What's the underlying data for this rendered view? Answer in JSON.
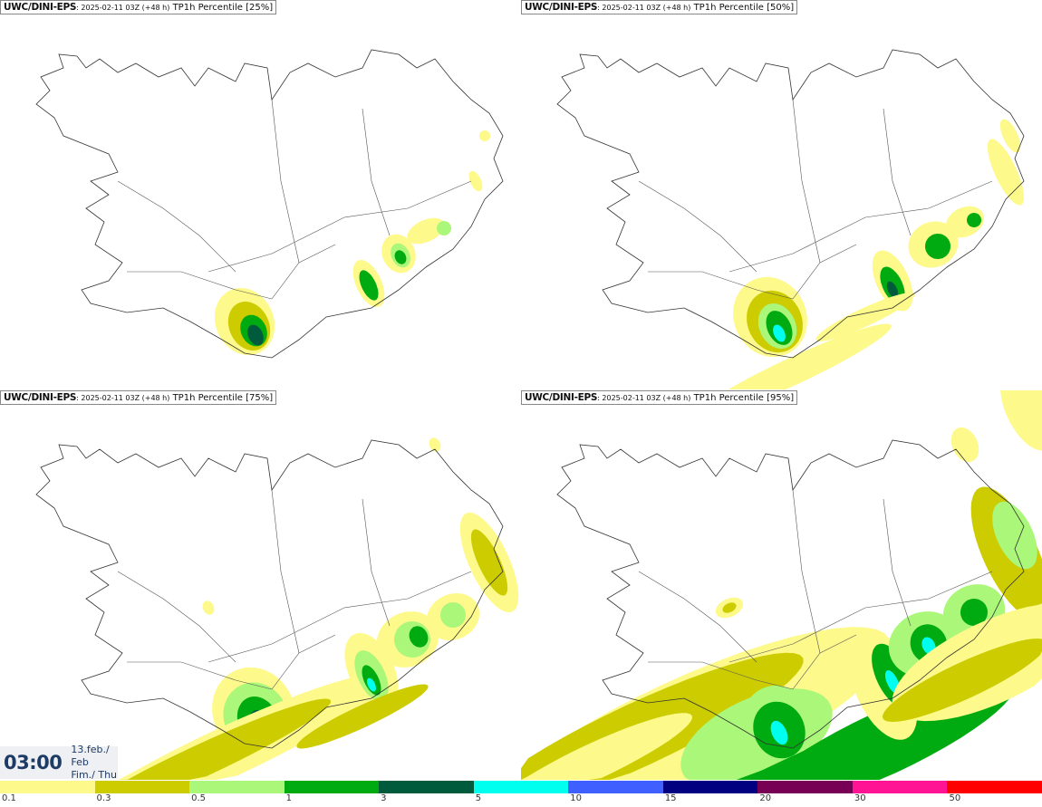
{
  "panels": [
    {
      "model": "UWC/DINI-EPS",
      "run": ": 2025-02-11 03Z (+48 h)",
      "field": "TP1h Percentile [25%]"
    },
    {
      "model": "UWC/DINI-EPS",
      "run": ": 2025-02-11 03Z (+48 h)",
      "field": "TP1h Percentile [50%]"
    },
    {
      "model": "UWC/DINI-EPS",
      "run": ": 2025-02-11 03Z (+48 h)",
      "field": "TP1h Percentile [75%]"
    },
    {
      "model": "UWC/DINI-EPS",
      "run": ": 2025-02-11 03Z (+48 h)",
      "field": "TP1h Percentile [95%]"
    }
  ],
  "valid_time": {
    "time": "03:00",
    "date_line1": "13.feb./ Feb",
    "date_line2": "Fim./ Thu"
  },
  "legend": {
    "labels": [
      "0.1",
      "0.3",
      "0.5",
      "1",
      "3",
      "5",
      "10",
      "15",
      "20",
      "30",
      "50"
    ],
    "colors": [
      "#fdf98a",
      "#cccc00",
      "#aaf77a",
      "#00aa11",
      "#005a3c",
      "#00ffee",
      "#3f5fff",
      "#000080",
      "#770055",
      "#ff1493",
      "#ff0000"
    ]
  }
}
